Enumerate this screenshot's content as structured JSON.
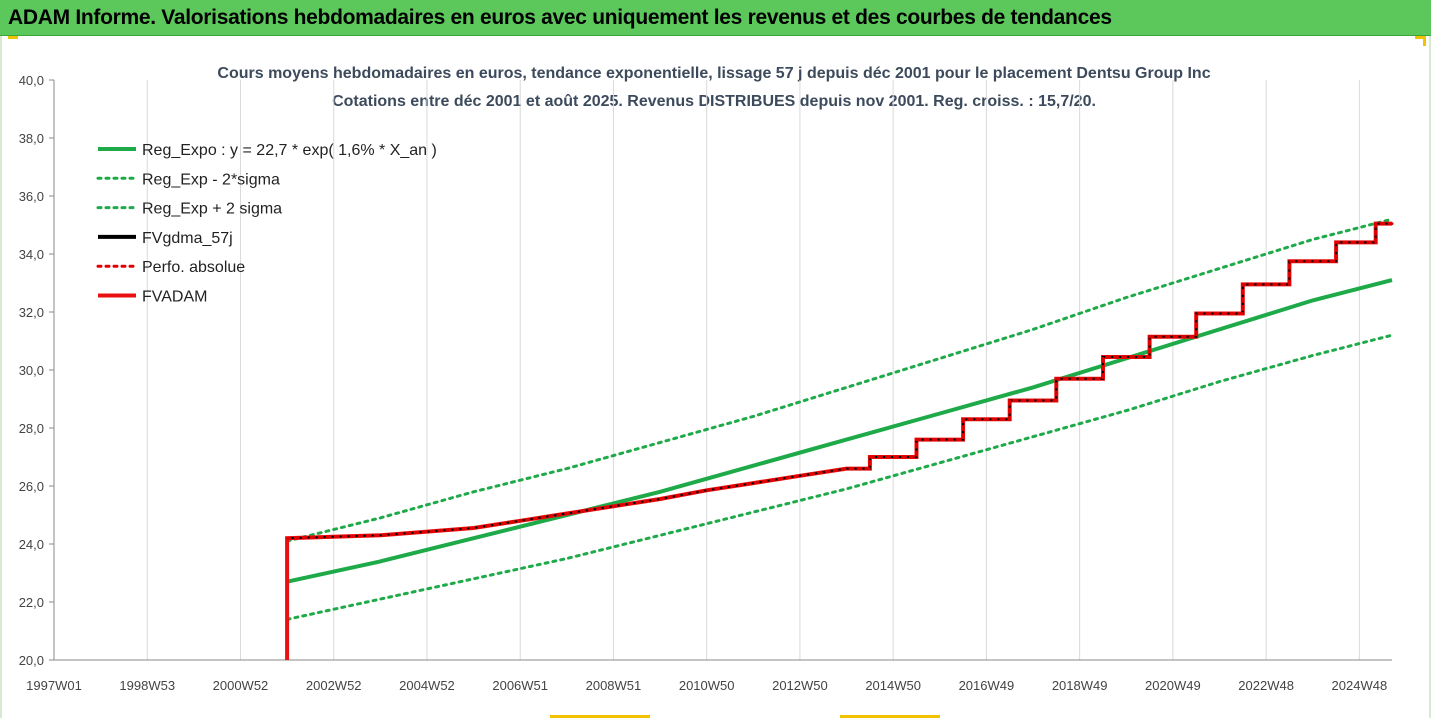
{
  "banner": {
    "title": "ADAM Informe. Valorisations hebdomadaires en euros avec uniquement les revenus et des courbes de tendances",
    "color": "#5cc85c"
  },
  "chart_data": {
    "type": "line",
    "title": "Cours moyens hebdomadaires en euros, tendance exponentielle, lissage 57 j depuis déc 2001 pour le placement Dentsu Group Inc",
    "subtitle": "Cotations entre déc 2001 et août 2025. Revenus DISTRIBUES depuis nov 2001. Reg. croiss. : 15,7/20.",
    "xlabel": "",
    "ylabel": "",
    "x_tick_labels": [
      "1997W01",
      "1998W53",
      "2000W52",
      "2002W52",
      "2004W52",
      "2006W51",
      "2008W51",
      "2010W50",
      "2012W50",
      "2014W50",
      "2016W49",
      "2018W49",
      "2020W49",
      "2022W48",
      "2024W48"
    ],
    "x_tick_years": [
      1997.0,
      1999.0,
      2001.0,
      2003.0,
      2005.0,
      2007.0,
      2009.0,
      2011.0,
      2013.0,
      2015.0,
      2017.0,
      2019.0,
      2021.0,
      2023.0,
      2025.0
    ],
    "xlim": [
      1997.0,
      2025.7
    ],
    "ylim": [
      20,
      40
    ],
    "y_ticks": [
      "20,0",
      "22,0",
      "24,0",
      "26,0",
      "28,0",
      "30,0",
      "32,0",
      "34,0",
      "36,0",
      "38,0",
      "40,0"
    ],
    "y_tick_values": [
      20,
      22,
      24,
      26,
      28,
      30,
      32,
      34,
      36,
      38,
      40
    ],
    "grid": "vertical",
    "legend_position": "top-left",
    "series": [
      {
        "name": "Reg_Expo : y = 22,7 * exp( 1,6% *  X_an )",
        "color": "#1faa4a",
        "style": "solid",
        "x": [
          2002.0,
          2004.0,
          2006.0,
          2008.0,
          2010.0,
          2012.0,
          2014.0,
          2016.0,
          2018.0,
          2020.0,
          2022.0,
          2024.0,
          2025.7
        ],
        "values": [
          22.7,
          23.4,
          24.2,
          25.0,
          25.8,
          26.7,
          27.6,
          28.5,
          29.4,
          30.4,
          31.4,
          32.4,
          33.1
        ]
      },
      {
        "name": "Reg_Exp - 2*sigma",
        "color": "#1faa4a",
        "style": "dotted",
        "x": [
          2002.0,
          2004.0,
          2006.0,
          2008.0,
          2010.0,
          2012.0,
          2014.0,
          2016.0,
          2018.0,
          2020.0,
          2022.0,
          2024.0,
          2025.7
        ],
        "values": [
          21.4,
          22.1,
          22.8,
          23.5,
          24.3,
          25.1,
          25.9,
          26.8,
          27.7,
          28.6,
          29.6,
          30.5,
          31.2
        ]
      },
      {
        "name": "Reg_Exp + 2 sigma",
        "color": "#1faa4a",
        "style": "dotted",
        "x": [
          2002.0,
          2004.0,
          2006.0,
          2008.0,
          2010.0,
          2012.0,
          2014.0,
          2016.0,
          2018.0,
          2020.0,
          2022.0,
          2024.0,
          2025.7
        ],
        "values": [
          24.1,
          24.9,
          25.8,
          26.6,
          27.5,
          28.4,
          29.4,
          30.4,
          31.4,
          32.5,
          33.5,
          34.5,
          35.2
        ]
      },
      {
        "name": "FVgdma_57j",
        "color": "#000000",
        "style": "solid",
        "x": [
          2002.0,
          2004.0,
          2006.0,
          2007.0,
          2008.0,
          2009.0,
          2010.0,
          2011.0,
          2012.0,
          2013.0,
          2014.0,
          2015.0,
          2016.0,
          2017.0,
          2018.0,
          2019.0,
          2020.0,
          2021.0,
          2022.0,
          2023.0,
          2024.0,
          2025.0,
          2025.7
        ],
        "values": [
          24.2,
          24.3,
          24.55,
          24.8,
          25.05,
          25.3,
          25.55,
          25.85,
          26.1,
          26.35,
          26.6,
          27.0,
          27.6,
          28.3,
          28.95,
          29.7,
          30.45,
          31.15,
          31.95,
          32.95,
          33.75,
          34.4,
          35.05
        ]
      },
      {
        "name": "Perfo. absolue",
        "color": "#e00000",
        "style": "dotted",
        "x": [
          2002.0,
          2004.0,
          2006.0,
          2007.0,
          2008.0,
          2009.0,
          2010.0,
          2011.0,
          2012.0,
          2013.0,
          2014.0,
          2015.0,
          2016.0,
          2017.0,
          2018.0,
          2019.0,
          2020.0,
          2021.0,
          2022.0,
          2023.0,
          2024.0,
          2025.0,
          2025.7
        ],
        "values": [
          24.2,
          24.3,
          24.55,
          24.8,
          25.05,
          25.3,
          25.55,
          25.85,
          26.1,
          26.35,
          26.6,
          27.0,
          27.6,
          28.3,
          28.95,
          29.7,
          30.45,
          31.15,
          31.95,
          32.95,
          33.75,
          34.4,
          35.05
        ]
      },
      {
        "name": "FVADAM",
        "color": "#e81010",
        "style": "thick",
        "x": [
          2002.0,
          2002.0,
          2004.0,
          2006.0,
          2007.0,
          2008.0,
          2009.0,
          2010.0,
          2011.0,
          2012.0,
          2013.0,
          2014.0,
          2015.0,
          2016.0,
          2017.0,
          2018.0,
          2019.0,
          2020.0,
          2021.0,
          2022.0,
          2023.0,
          2024.0,
          2025.0,
          2025.7
        ],
        "values": [
          20.0,
          24.2,
          24.3,
          24.55,
          24.8,
          25.05,
          25.3,
          25.55,
          25.85,
          26.1,
          26.35,
          26.6,
          27.0,
          27.6,
          28.3,
          28.95,
          29.7,
          30.45,
          31.15,
          31.95,
          32.95,
          33.75,
          34.4,
          35.05
        ]
      }
    ]
  }
}
